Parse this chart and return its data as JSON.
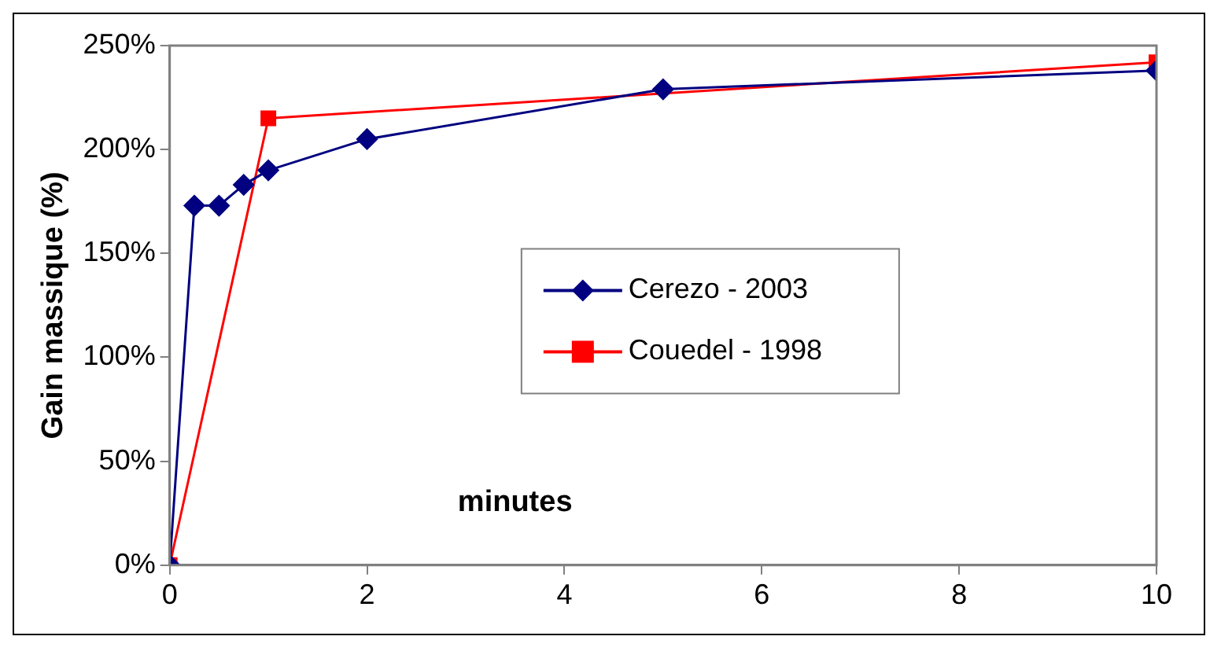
{
  "chart_data": {
    "type": "line",
    "xlabel": "minutes",
    "ylabel": "Gain massique (%)",
    "xlim": [
      0,
      10
    ],
    "xticks": [
      0,
      2,
      4,
      6,
      8,
      10
    ],
    "ylim": [
      0,
      250
    ],
    "yticks": [
      {
        "value": 0,
        "label": "0%"
      },
      {
        "value": 50,
        "label": "50%"
      },
      {
        "value": 100,
        "label": "100%"
      },
      {
        "value": 150,
        "label": "150%"
      },
      {
        "value": 200,
        "label": "200%"
      },
      {
        "value": 250,
        "label": "250%"
      }
    ],
    "grid": false,
    "legend": "center",
    "line_style": "solid",
    "series": [
      {
        "name": "Cerezo - 2003",
        "color": "#000080",
        "marker": "diamond",
        "x": [
          0,
          0.25,
          0.5,
          0.75,
          1,
          2,
          5,
          10
        ],
        "values": [
          0,
          173,
          173,
          183,
          190,
          205,
          229,
          238
        ]
      },
      {
        "name": "Couedel - 1998",
        "color": "#ff0000",
        "marker": "square",
        "x": [
          0,
          1,
          10
        ],
        "values": [
          0,
          215,
          242
        ]
      }
    ]
  }
}
